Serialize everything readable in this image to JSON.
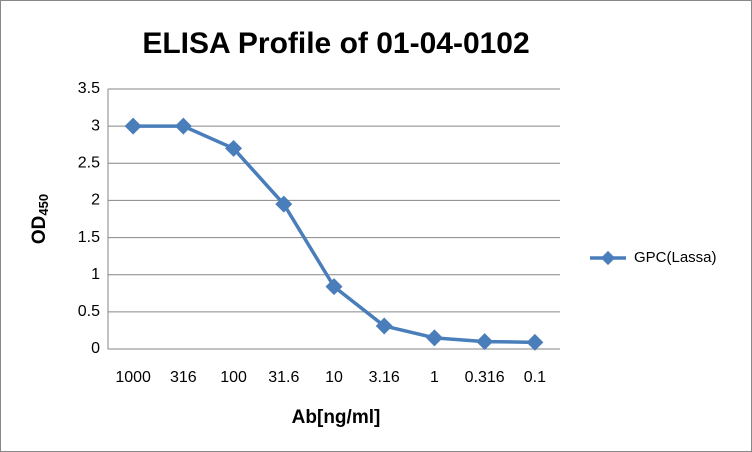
{
  "chart_data": {
    "type": "line",
    "title": "ELISA Profile of 01-04-0102",
    "xlabel": "Ab[ng/ml]",
    "ylabel": "OD",
    "ylabel_subscript": "450",
    "categories": [
      "1000",
      "316",
      "100",
      "31.6",
      "10",
      "3.16",
      "1",
      "0.316",
      "0.1"
    ],
    "series": [
      {
        "name": "GPC(Lassa)",
        "color": "#4a7ebb",
        "values": [
          3.0,
          3.0,
          2.7,
          1.95,
          0.84,
          0.31,
          0.15,
          0.1,
          0.09
        ]
      }
    ],
    "ylim": [
      0,
      3.5
    ],
    "yticks": [
      0,
      0.5,
      1,
      1.5,
      2,
      2.5,
      3,
      3.5
    ],
    "grid": true,
    "legend": "right"
  }
}
